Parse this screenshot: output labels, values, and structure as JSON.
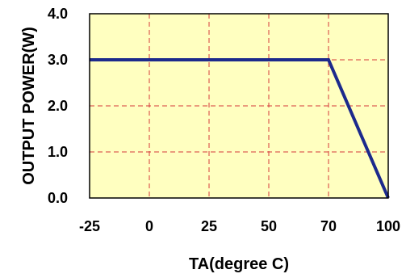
{
  "chart_data": {
    "type": "line",
    "title": "",
    "xlabel": "TA(degree C)",
    "ylabel": "OUTPUT POWER(W)",
    "x_ticks": [
      -25,
      0,
      25,
      50,
      70,
      100
    ],
    "x_tick_labels": [
      "-25",
      "0",
      "25",
      "50",
      "70",
      "100"
    ],
    "y_ticks": [
      0,
      1,
      2,
      3,
      4
    ],
    "y_tick_labels": [
      "0.0",
      "1.0",
      "2.0",
      "3.0",
      "4.0"
    ],
    "grid": true,
    "series": [
      {
        "x": [
          -25,
          70,
          100
        ],
        "y": [
          3.0,
          3.0,
          0.0
        ]
      }
    ],
    "colors": {
      "plot_background": "#ffffc0",
      "line": "#1c2a8c",
      "grid": "#d43a3a",
      "frame": "#000000"
    }
  }
}
